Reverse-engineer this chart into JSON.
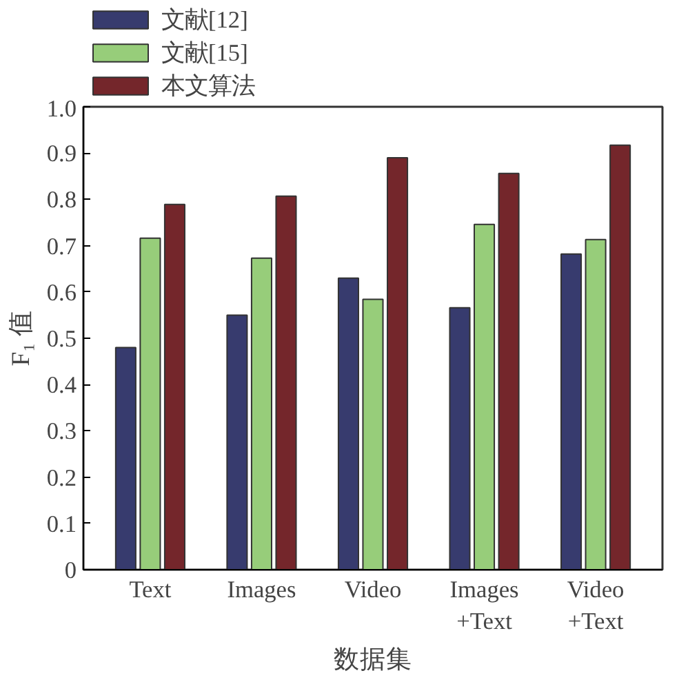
{
  "chart_data": {
    "type": "bar",
    "xlabel": "数据集",
    "ylabel": "F₁ 值",
    "categories": [
      "Text",
      "Images",
      "Video",
      "Images\n+Text",
      "Video\n+Text"
    ],
    "series": [
      {
        "name": "文献[12]",
        "color": "#373b6e",
        "values": [
          0.48,
          0.55,
          0.63,
          0.566,
          0.682
        ]
      },
      {
        "name": "文献[15]",
        "color": "#97cd7a",
        "values": [
          0.716,
          0.673,
          0.584,
          0.746,
          0.713
        ]
      },
      {
        "name": "本文算法",
        "color": "#74262b",
        "values": [
          0.789,
          0.807,
          0.89,
          0.856,
          0.917
        ]
      }
    ],
    "ylim": [
      0,
      1
    ],
    "yticks": [
      0,
      0.1,
      0.2,
      0.3,
      0.4,
      0.5,
      0.6,
      0.7,
      0.8,
      0.9,
      {
        "value": 1,
        "label": "1.0"
      }
    ],
    "grid": false,
    "legend": "top left"
  }
}
